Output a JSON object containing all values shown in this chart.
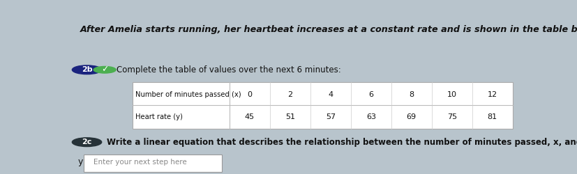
{
  "title": "After Amelia starts running, her heartbeat increases at a constant rate and is shown in the table below:",
  "section_2b_label": "2b",
  "section_2b_text": "Complete the table of values over the next 6 minutes:",
  "row1_label": "Number of minutes passed (x)",
  "row2_label": "Heart rate (y)",
  "x_values": [
    0,
    2,
    4,
    6,
    8,
    10,
    12
  ],
  "y_values": [
    45,
    51,
    57,
    63,
    69,
    75,
    81
  ],
  "section_2c_label": "2c",
  "section_2c_text": "Write a linear equation that describes the relationship between the number of minutes passed, x, and Amelia’s heartbeat, y.",
  "input_label": "y =",
  "input_placeholder": "Enter your next step here",
  "bg_color": "#b8c4cc",
  "badge_2b_color": "#1a237e",
  "badge_2c_color": "#263238",
  "check_color": "#4caf50",
  "text_color": "#111111",
  "title_color": "#111111",
  "table_border_color": "#aaaaaa",
  "divider_color": "#bbbbbb"
}
